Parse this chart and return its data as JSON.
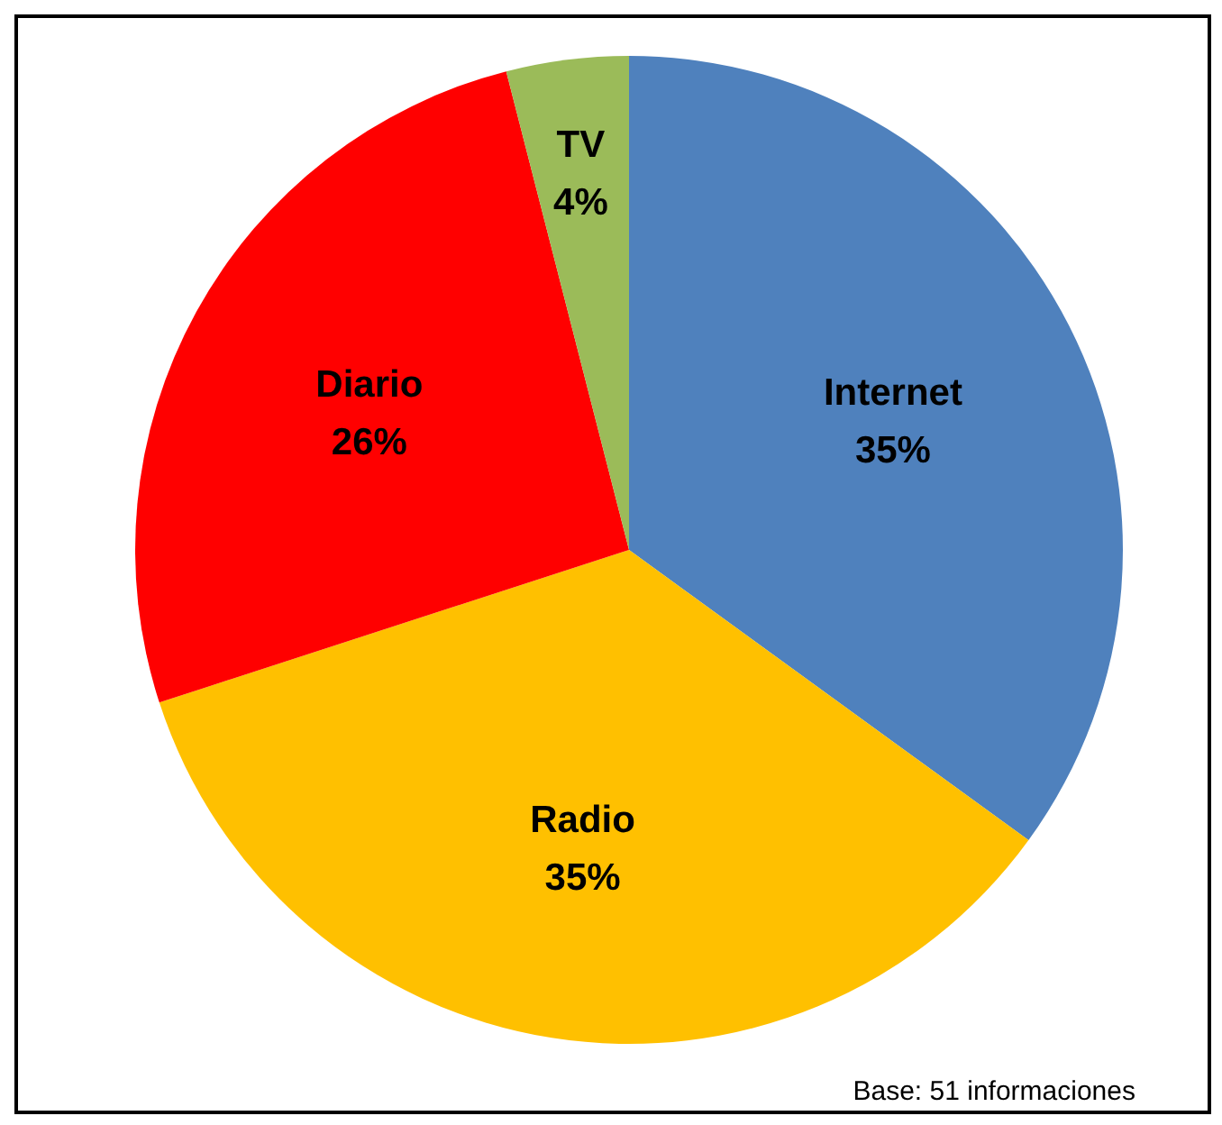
{
  "chart_data": {
    "type": "pie",
    "categories": [
      "Internet",
      "Radio",
      "Diario",
      "TV"
    ],
    "values": [
      35,
      35,
      26,
      4
    ],
    "colors": [
      "#4f81bd",
      "#ffc000",
      "#ff0000",
      "#9bbb59"
    ],
    "value_labels": [
      "35%",
      "35%",
      "26%",
      "4%"
    ],
    "annotations": [
      "Base: 51 informaciones"
    ]
  }
}
